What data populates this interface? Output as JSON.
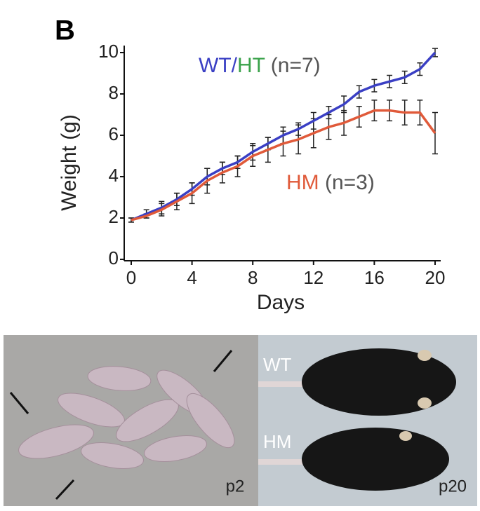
{
  "chart_data": {
    "type": "line",
    "panel_label": "B",
    "x_label": "Days",
    "y_label": "Weight (g)",
    "x": [
      0,
      1,
      2,
      3,
      4,
      5,
      6,
      7,
      8,
      9,
      10,
      11,
      12,
      13,
      14,
      15,
      16,
      17,
      18,
      19,
      20
    ],
    "series": [
      {
        "name": "WT/HT",
        "color": "#3a3fc4",
        "values": [
          1.9,
          2.2,
          2.5,
          2.9,
          3.4,
          4.0,
          4.4,
          4.7,
          5.2,
          5.6,
          6.0,
          6.3,
          6.7,
          7.1,
          7.5,
          8.1,
          8.4,
          8.6,
          8.8,
          9.2,
          10.0
        ],
        "errors": [
          0.1,
          0.2,
          0.3,
          0.3,
          0.3,
          0.4,
          0.3,
          0.3,
          0.4,
          0.3,
          0.4,
          0.3,
          0.4,
          0.3,
          0.4,
          0.3,
          0.3,
          0.3,
          0.3,
          0.3,
          0.2
        ]
      },
      {
        "name": "HM",
        "color": "#e05a3a",
        "values": [
          1.9,
          2.1,
          2.4,
          2.8,
          3.2,
          3.8,
          4.2,
          4.5,
          5.0,
          5.3,
          5.6,
          5.8,
          6.1,
          6.4,
          6.6,
          6.9,
          7.2,
          7.2,
          7.1,
          7.1,
          6.1
        ],
        "errors": [
          0.1,
          0.1,
          0.3,
          0.4,
          0.5,
          0.6,
          0.5,
          0.5,
          0.5,
          0.6,
          0.6,
          0.7,
          0.7,
          0.6,
          0.6,
          0.5,
          0.5,
          0.5,
          0.6,
          0.6,
          1.0
        ]
      }
    ],
    "annotations": [
      {
        "parts": [
          {
            "text": "WT",
            "color": "#3a3fc4"
          },
          {
            "text": "/",
            "color": "#3a3fc4"
          },
          {
            "text": "HT",
            "color": "#3aa24a"
          },
          {
            "text": " (n=7)",
            "color": "#555555"
          }
        ]
      },
      {
        "parts": [
          {
            "text": "HM",
            "color": "#e05a3a"
          },
          {
            "text": " (n=3)",
            "color": "#555555"
          }
        ]
      }
    ],
    "xlim": [
      0,
      20
    ],
    "xticks": [
      0,
      4,
      8,
      12,
      16,
      20
    ],
    "ylim": [
      0,
      10
    ],
    "yticks": [
      0,
      2,
      4,
      6,
      8,
      10
    ]
  },
  "photos": {
    "left_label": "p2",
    "right_label": "p20",
    "right_rows": [
      "WT",
      "HM"
    ]
  }
}
